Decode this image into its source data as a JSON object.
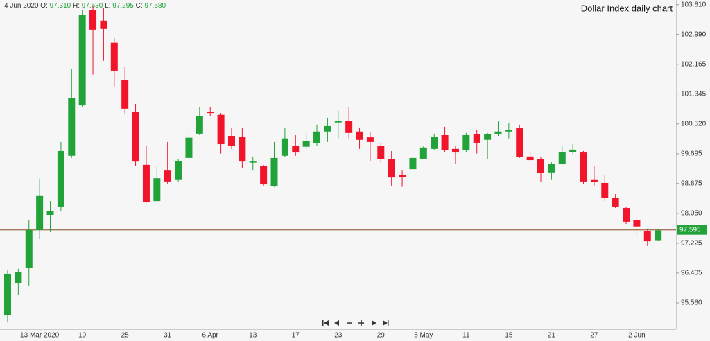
{
  "chart_data": {
    "type": "candlestick",
    "title": "Dollar Index daily chart",
    "legend": {
      "date": "4 Jun 2020",
      "fields": [
        {
          "key": "O:",
          "text": "97.310"
        },
        {
          "key": "H:",
          "text": "97.630"
        },
        {
          "key": "L:",
          "text": "97.295"
        },
        {
          "key": "C:",
          "text": "97.580"
        }
      ]
    },
    "categories": [
      null,
      null,
      null,
      "13 Mar 2020",
      null,
      null,
      null,
      "19",
      null,
      null,
      null,
      "25",
      null,
      null,
      null,
      "31",
      null,
      null,
      null,
      "6 Apr",
      null,
      null,
      null,
      "13",
      null,
      null,
      null,
      "17",
      null,
      null,
      null,
      "23",
      null,
      null,
      null,
      "29",
      null,
      null,
      null,
      "5 May",
      null,
      null,
      null,
      "11",
      null,
      null,
      null,
      "15",
      null,
      null,
      null,
      "21",
      null,
      null,
      null,
      "27",
      null,
      null,
      null,
      "2 Jun",
      null,
      null
    ],
    "open": [
      95.235,
      96.13,
      96.54,
      97.59,
      98.01,
      98.24,
      99.64,
      101.03,
      103.66,
      103.37,
      102.76,
      101.74,
      100.84,
      99.39,
      98.39,
      99.25,
      98.99,
      99.58,
      100.25,
      100.86,
      100.77,
      100.19,
      100.17,
      99.45,
      99.35,
      98.81,
      99.64,
      99.92,
      99.89,
      99.99,
      100.31,
      100.56,
      100.6,
      100.31,
      100.15,
      99.92,
      99.54,
      99.1,
      99.27,
      99.56,
      99.83,
      100.21,
      99.83,
      99.79,
      100.23,
      100.08,
      100.23,
      100.31,
      100.4,
      99.62,
      99.54,
      99.18,
      99.41,
      99.75,
      99.73,
      98.99,
      98.89,
      98.47,
      98.2,
      97.86,
      97.55,
      97.31
    ],
    "high": [
      96.48,
      96.52,
      97.86,
      99.01,
      98.39,
      100.02,
      102.03,
      103.66,
      103.79,
      103.71,
      102.89,
      102.09,
      101.07,
      99.92,
      99.35,
      100.02,
      99.54,
      100.44,
      100.98,
      100.98,
      100.82,
      100.4,
      100.4,
      99.6,
      99.39,
      100.02,
      100.4,
      100.21,
      100.25,
      100.5,
      100.69,
      100.88,
      100.98,
      100.4,
      100.31,
      99.98,
      99.77,
      99.25,
      99.64,
      99.92,
      100.25,
      100.44,
      99.92,
      100.27,
      100.36,
      100.27,
      100.59,
      100.54,
      100.5,
      99.73,
      99.62,
      99.46,
      99.92,
      99.96,
      99.77,
      99.35,
      99.1,
      98.58,
      98.24,
      97.92,
      97.63,
      97.63
    ],
    "low": [
      95.04,
      95.81,
      96.06,
      97.34,
      97.53,
      98.11,
      99.58,
      100.98,
      101.88,
      102.26,
      101.55,
      100.79,
      99.35,
      98.34,
      98.37,
      98.87,
      98.93,
      99.54,
      100.21,
      100.73,
      99.7,
      99.83,
      99.29,
      99.25,
      98.81,
      98.78,
      99.6,
      99.64,
      99.83,
      99.92,
      100.02,
      100.12,
      100.12,
      99.83,
      99.5,
      99.45,
      98.81,
      98.78,
      99.25,
      99.54,
      99.79,
      99.73,
      99.41,
      99.73,
      99.7,
      99.54,
      100.19,
      100.12,
      99.58,
      99.48,
      98.93,
      98.99,
      99.39,
      99.69,
      98.87,
      98.81,
      98.39,
      98.2,
      97.76,
      97.4,
      97.15,
      97.295
    ],
    "close": [
      96.385,
      96.44,
      97.59,
      98.53,
      98.11,
      99.77,
      101.23,
      103.52,
      103.12,
      103.14,
      101.99,
      100.94,
      99.48,
      98.36,
      99.02,
      98.93,
      99.5,
      100.14,
      100.73,
      100.82,
      99.96,
      99.92,
      99.48,
      99.48,
      98.85,
      99.58,
      100.12,
      99.73,
      100.04,
      100.31,
      100.46,
      100.6,
      100.27,
      100.08,
      100.02,
      99.54,
      99.04,
      99.06,
      99.58,
      99.87,
      100.17,
      99.79,
      99.73,
      100.21,
      100,
      100.23,
      100.31,
      100.36,
      99.6,
      99.52,
      99.16,
      99.41,
      99.75,
      99.81,
      98.93,
      98.91,
      98.47,
      98.24,
      97.82,
      97.69,
      97.28,
      97.58
    ],
    "up_color": "#22a33a",
    "down_color": "#f2142a",
    "last_price": 97.595,
    "last_price_line_color": "#a57a5a",
    "ylim": [
      95.14,
      103.94
    ],
    "yticks": [
      {
        "value": 103.81,
        "label": "103.810"
      },
      {
        "value": 102.99,
        "label": "102.990"
      },
      102.165,
      101.345,
      {
        "value": 100.52,
        "label": "100.520"
      },
      99.695,
      98.875,
      {
        "value": 98.05,
        "label": "98.050"
      },
      97.225,
      96.405,
      {
        "value": 95.58,
        "label": "95.580"
      }
    ]
  }
}
